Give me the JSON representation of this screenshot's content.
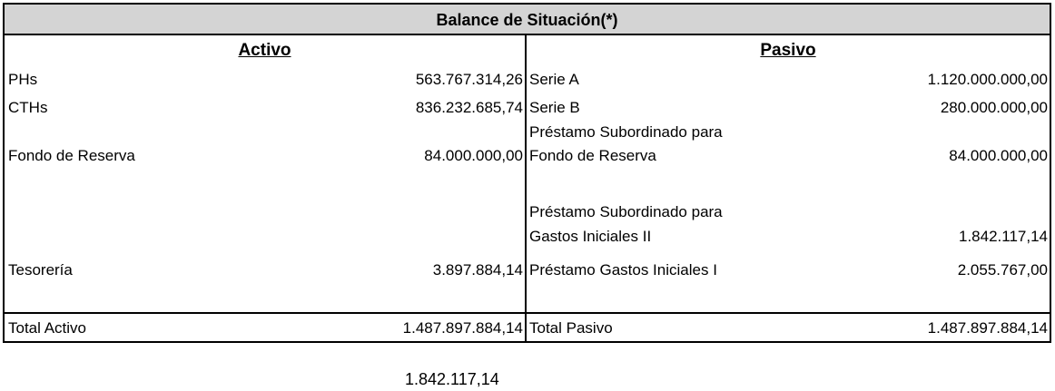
{
  "title": "Balance de Situación(*)",
  "activo": {
    "header": "Activo",
    "rows": [
      {
        "label": "PHs",
        "value": "563.767.314,26"
      },
      {
        "label": "CTHs",
        "value": "836.232.685,74"
      },
      {
        "label": "Fondo de Reserva",
        "value": "84.000.000,00"
      },
      {
        "label": "Tesorería",
        "value": "3.897.884,14"
      }
    ],
    "total_label": "Total Activo",
    "total_value": "1.487.897.884,14"
  },
  "pasivo": {
    "header": "Pasivo",
    "rows": [
      {
        "label": "Serie A",
        "value": "1.120.000.000,00"
      },
      {
        "label": "Serie B",
        "value": "280.000.000,00"
      },
      {
        "label_line1": "Préstamo Subordinado para",
        "label_line2": "Fondo de Reserva",
        "value": "84.000.000,00"
      },
      {
        "label_line1": "Préstamo Subordinado para",
        "label_line2": "Gastos Iniciales II",
        "value": "1.842.117,14"
      },
      {
        "label": "Préstamo Gastos Iniciales I",
        "value": "2.055.767,00"
      }
    ],
    "total_label": "Total Pasivo",
    "total_value": "1.487.897.884,14"
  },
  "footer_value": "1.842.117,14"
}
